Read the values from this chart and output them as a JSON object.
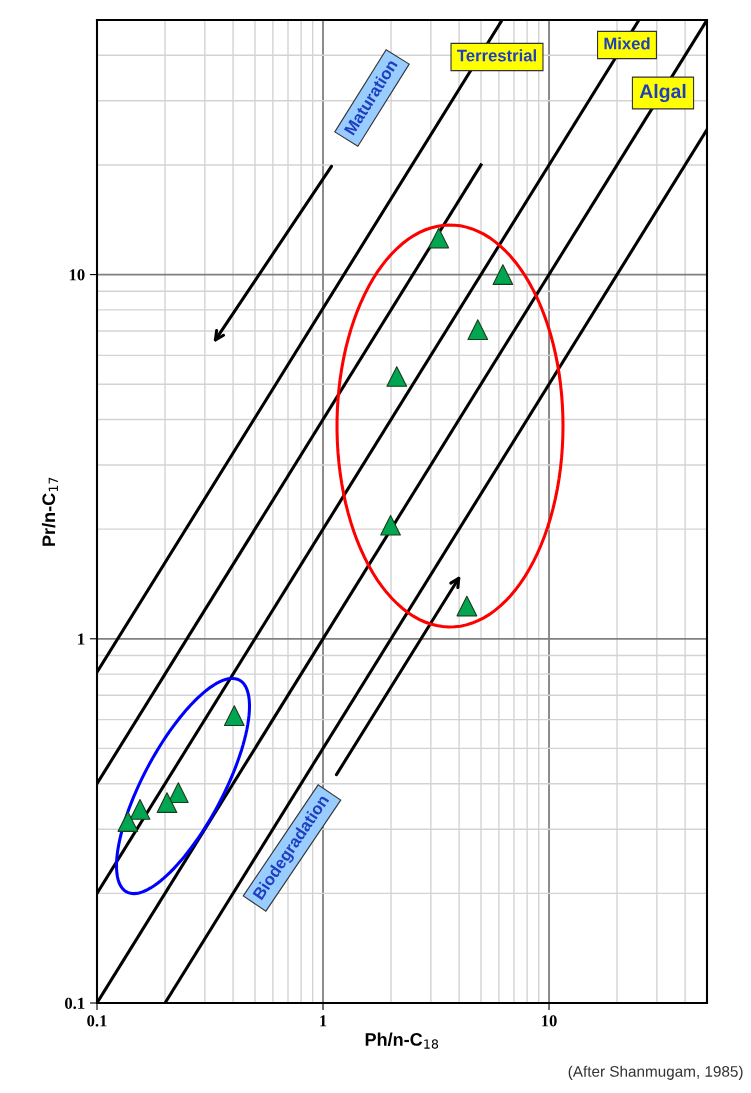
{
  "chart_data": {
    "type": "scatter",
    "xlabel": "Ph/n-C$_{18}$",
    "ylabel": "Pr/n-C$_{17}$",
    "log": "xy",
    "grid": true,
    "xlim": [
      0.1,
      50
    ],
    "ylim": [
      0.1,
      50
    ],
    "xticks": [
      0.1,
      1,
      10
    ],
    "yticks": [
      0.1,
      1,
      10
    ],
    "series": [
      {
        "marker": "triangle",
        "color": "#00a651",
        "x": [
          3.25,
          6.25,
          4.84,
          2.12,
          1.99,
          4.33,
          0.405,
          0.229,
          0.213,
          0.204,
          0.155,
          0.14,
          0.137
        ],
        "values": [
          12.6,
          10,
          7.06,
          5.25,
          2.05,
          1.23,
          0.615,
          0.378,
          null,
          0.355,
          0.34,
          null,
          0.315
        ]
      },
      {
        "type": "line",
        "color": "#000000",
        "x": [
          0.1,
          6.2
        ],
        "values": [
          0.81,
          50
        ]
      },
      {
        "type": "line",
        "color": "#000000",
        "x": [
          0.1,
          5
        ],
        "values": [
          0.4,
          20
        ]
      },
      {
        "type": "line",
        "color": "#000000",
        "x": [
          0.1,
          25
        ],
        "values": [
          0.2,
          50
        ]
      },
      {
        "type": "line",
        "color": "#000000",
        "x": [
          0.1,
          50
        ],
        "values": [
          0.1,
          50
        ]
      },
      {
        "type": "line",
        "color": "#000000",
        "x": [
          0.2,
          50
        ],
        "values": [
          0.1,
          25
        ]
      }
    ],
    "annotations": [
      "Terrestrial",
      "Mixed",
      "Algal",
      "Maturation",
      "Biodegradation",
      "(After Shanmugam, 1985)"
    ]
  }
}
